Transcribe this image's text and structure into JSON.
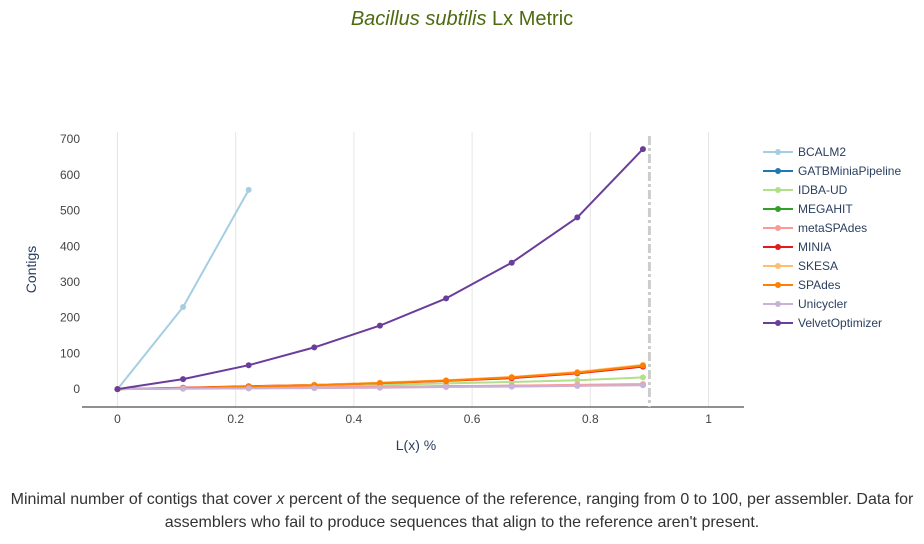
{
  "title": {
    "species": "Bacillus subtilis",
    "suffix": "Lx Metric"
  },
  "caption": {
    "part1": "Minimal number of contigs that cover ",
    "var": "x",
    "part2": " percent of the sequence of the reference, ranging from 0 to 100, per assembler. Data for assemblers who fail to produce sequences that align to the reference aren't present."
  },
  "chart_data": {
    "type": "line",
    "xlabel": "L(x) %",
    "ylabel": "Contigs",
    "xlim": [
      -0.06,
      1.06
    ],
    "ylim": [
      -50,
      720
    ],
    "xticks": [
      0,
      0.2,
      0.4,
      0.6,
      0.8,
      1
    ],
    "yticks": [
      0,
      100,
      200,
      300,
      400,
      500,
      600,
      700
    ],
    "grid": true,
    "legend_position": "right",
    "reference_line": {
      "x": 0.9,
      "style": "dash-dot",
      "color": "#cccccc"
    },
    "series": [
      {
        "name": "BCALM2",
        "color": "#a6cee3",
        "x": [
          0,
          0.111,
          0.222
        ],
        "y": [
          0,
          230,
          558
        ]
      },
      {
        "name": "GATBMiniaPipeline",
        "color": "#1f78b4",
        "x": [
          0,
          0.111,
          0.222,
          0.333,
          0.444,
          0.556,
          0.667,
          0.778,
          0.889
        ],
        "y": [
          0,
          2,
          3,
          5,
          6,
          8,
          9,
          11,
          13
        ]
      },
      {
        "name": "IDBA-UD",
        "color": "#b2df8a",
        "x": [
          0,
          0.111,
          0.222,
          0.333,
          0.444,
          0.556,
          0.667,
          0.778,
          0.889
        ],
        "y": [
          0,
          3,
          6,
          9,
          12,
          16,
          20,
          25,
          33
        ]
      },
      {
        "name": "MEGAHIT",
        "color": "#33a02c",
        "x": [
          0,
          0.111,
          0.222,
          0.333,
          0.444,
          0.556,
          0.667,
          0.778,
          0.889
        ],
        "y": [
          0,
          2,
          3,
          4,
          5,
          7,
          8,
          10,
          12
        ]
      },
      {
        "name": "metaSPAdes",
        "color": "#fb9a99",
        "x": [
          0,
          0.111,
          0.222,
          0.333,
          0.444,
          0.556,
          0.667,
          0.778,
          0.889
        ],
        "y": [
          0,
          2,
          4,
          5,
          7,
          8,
          10,
          12,
          14
        ]
      },
      {
        "name": "MINIA",
        "color": "#e31a1c",
        "x": [
          0,
          0.111,
          0.222,
          0.333,
          0.444,
          0.556,
          0.667,
          0.778,
          0.889
        ],
        "y": [
          0,
          4,
          8,
          12,
          17,
          23,
          31,
          44,
          63
        ]
      },
      {
        "name": "SKESA",
        "color": "#fdbf6f",
        "x": [
          0,
          0.111,
          0.222,
          0.333,
          0.444,
          0.556,
          0.667,
          0.778,
          0.889
        ],
        "y": [
          0,
          3,
          7,
          12,
          18,
          25,
          34,
          48,
          68
        ]
      },
      {
        "name": "SPAdes",
        "color": "#ff7f00",
        "x": [
          0,
          0.111,
          0.222,
          0.333,
          0.444,
          0.556,
          0.667,
          0.778,
          0.889
        ],
        "y": [
          0,
          3,
          7,
          11,
          17,
          24,
          33,
          46,
          66
        ]
      },
      {
        "name": "Unicycler",
        "color": "#cab2d6",
        "x": [
          0,
          0.111,
          0.222,
          0.333,
          0.444,
          0.556,
          0.667,
          0.778,
          0.889
        ],
        "y": [
          0,
          1,
          2,
          3,
          4,
          6,
          7,
          9,
          11
        ]
      },
      {
        "name": "VelvetOptimizer",
        "color": "#6a3d9a",
        "x": [
          0,
          0.111,
          0.222,
          0.333,
          0.444,
          0.556,
          0.667,
          0.778,
          0.889
        ],
        "y": [
          0,
          28,
          67,
          117,
          178,
          254,
          354,
          481,
          672
        ]
      }
    ]
  }
}
